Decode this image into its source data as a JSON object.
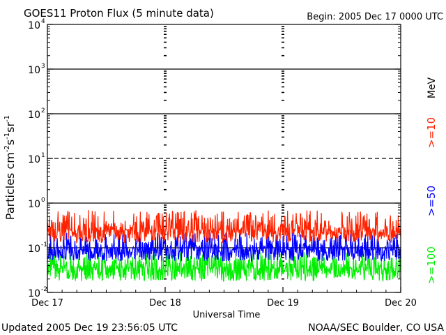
{
  "chart_data": {
    "type": "line",
    "title": "GOES11 Proton Flux (5 minute data)",
    "begin_label": "Begin: 2005 Dec 17 0000 UTC",
    "xlabel": "Universal Time",
    "ylabel_parts": [
      "Particles cm",
      "-2",
      "s",
      "-1",
      "sr",
      "-1"
    ],
    "y_scale": "log",
    "ylim": [
      0.01,
      10000
    ],
    "y_ticks": [
      {
        "base": "10",
        "exp": "-2",
        "value": 0.01
      },
      {
        "base": "10",
        "exp": "-1",
        "value": 0.1
      },
      {
        "base": "10",
        "exp": "0",
        "value": 1
      },
      {
        "base": "10",
        "exp": "1",
        "value": 10
      },
      {
        "base": "10",
        "exp": "2",
        "value": 100
      },
      {
        "base": "10",
        "exp": "3",
        "value": 1000
      },
      {
        "base": "10",
        "exp": "4",
        "value": 10000
      }
    ],
    "x_ticks": [
      "Dec 17",
      "Dec 18",
      "Dec 19",
      "Dec 20"
    ],
    "xlim_days": [
      0,
      3
    ],
    "dashed_gridline_value": 10,
    "energy_unit": "MeV",
    "series": [
      {
        "name": ">=10",
        "color": "#ff2200",
        "baseline": 0.25,
        "range": [
          0.13,
          0.7
        ]
      },
      {
        "name": ">=50",
        "color": "#0000ff",
        "baseline": 0.09,
        "range": [
          0.05,
          0.22
        ]
      },
      {
        "name": ">=100",
        "color": "#00ee00",
        "baseline": 0.035,
        "range": [
          0.018,
          0.08
        ]
      }
    ]
  },
  "footer": {
    "updated": "Updated 2005 Dec 19 23:56:05 UTC",
    "credit": "NOAA/SEC Boulder, CO USA"
  }
}
